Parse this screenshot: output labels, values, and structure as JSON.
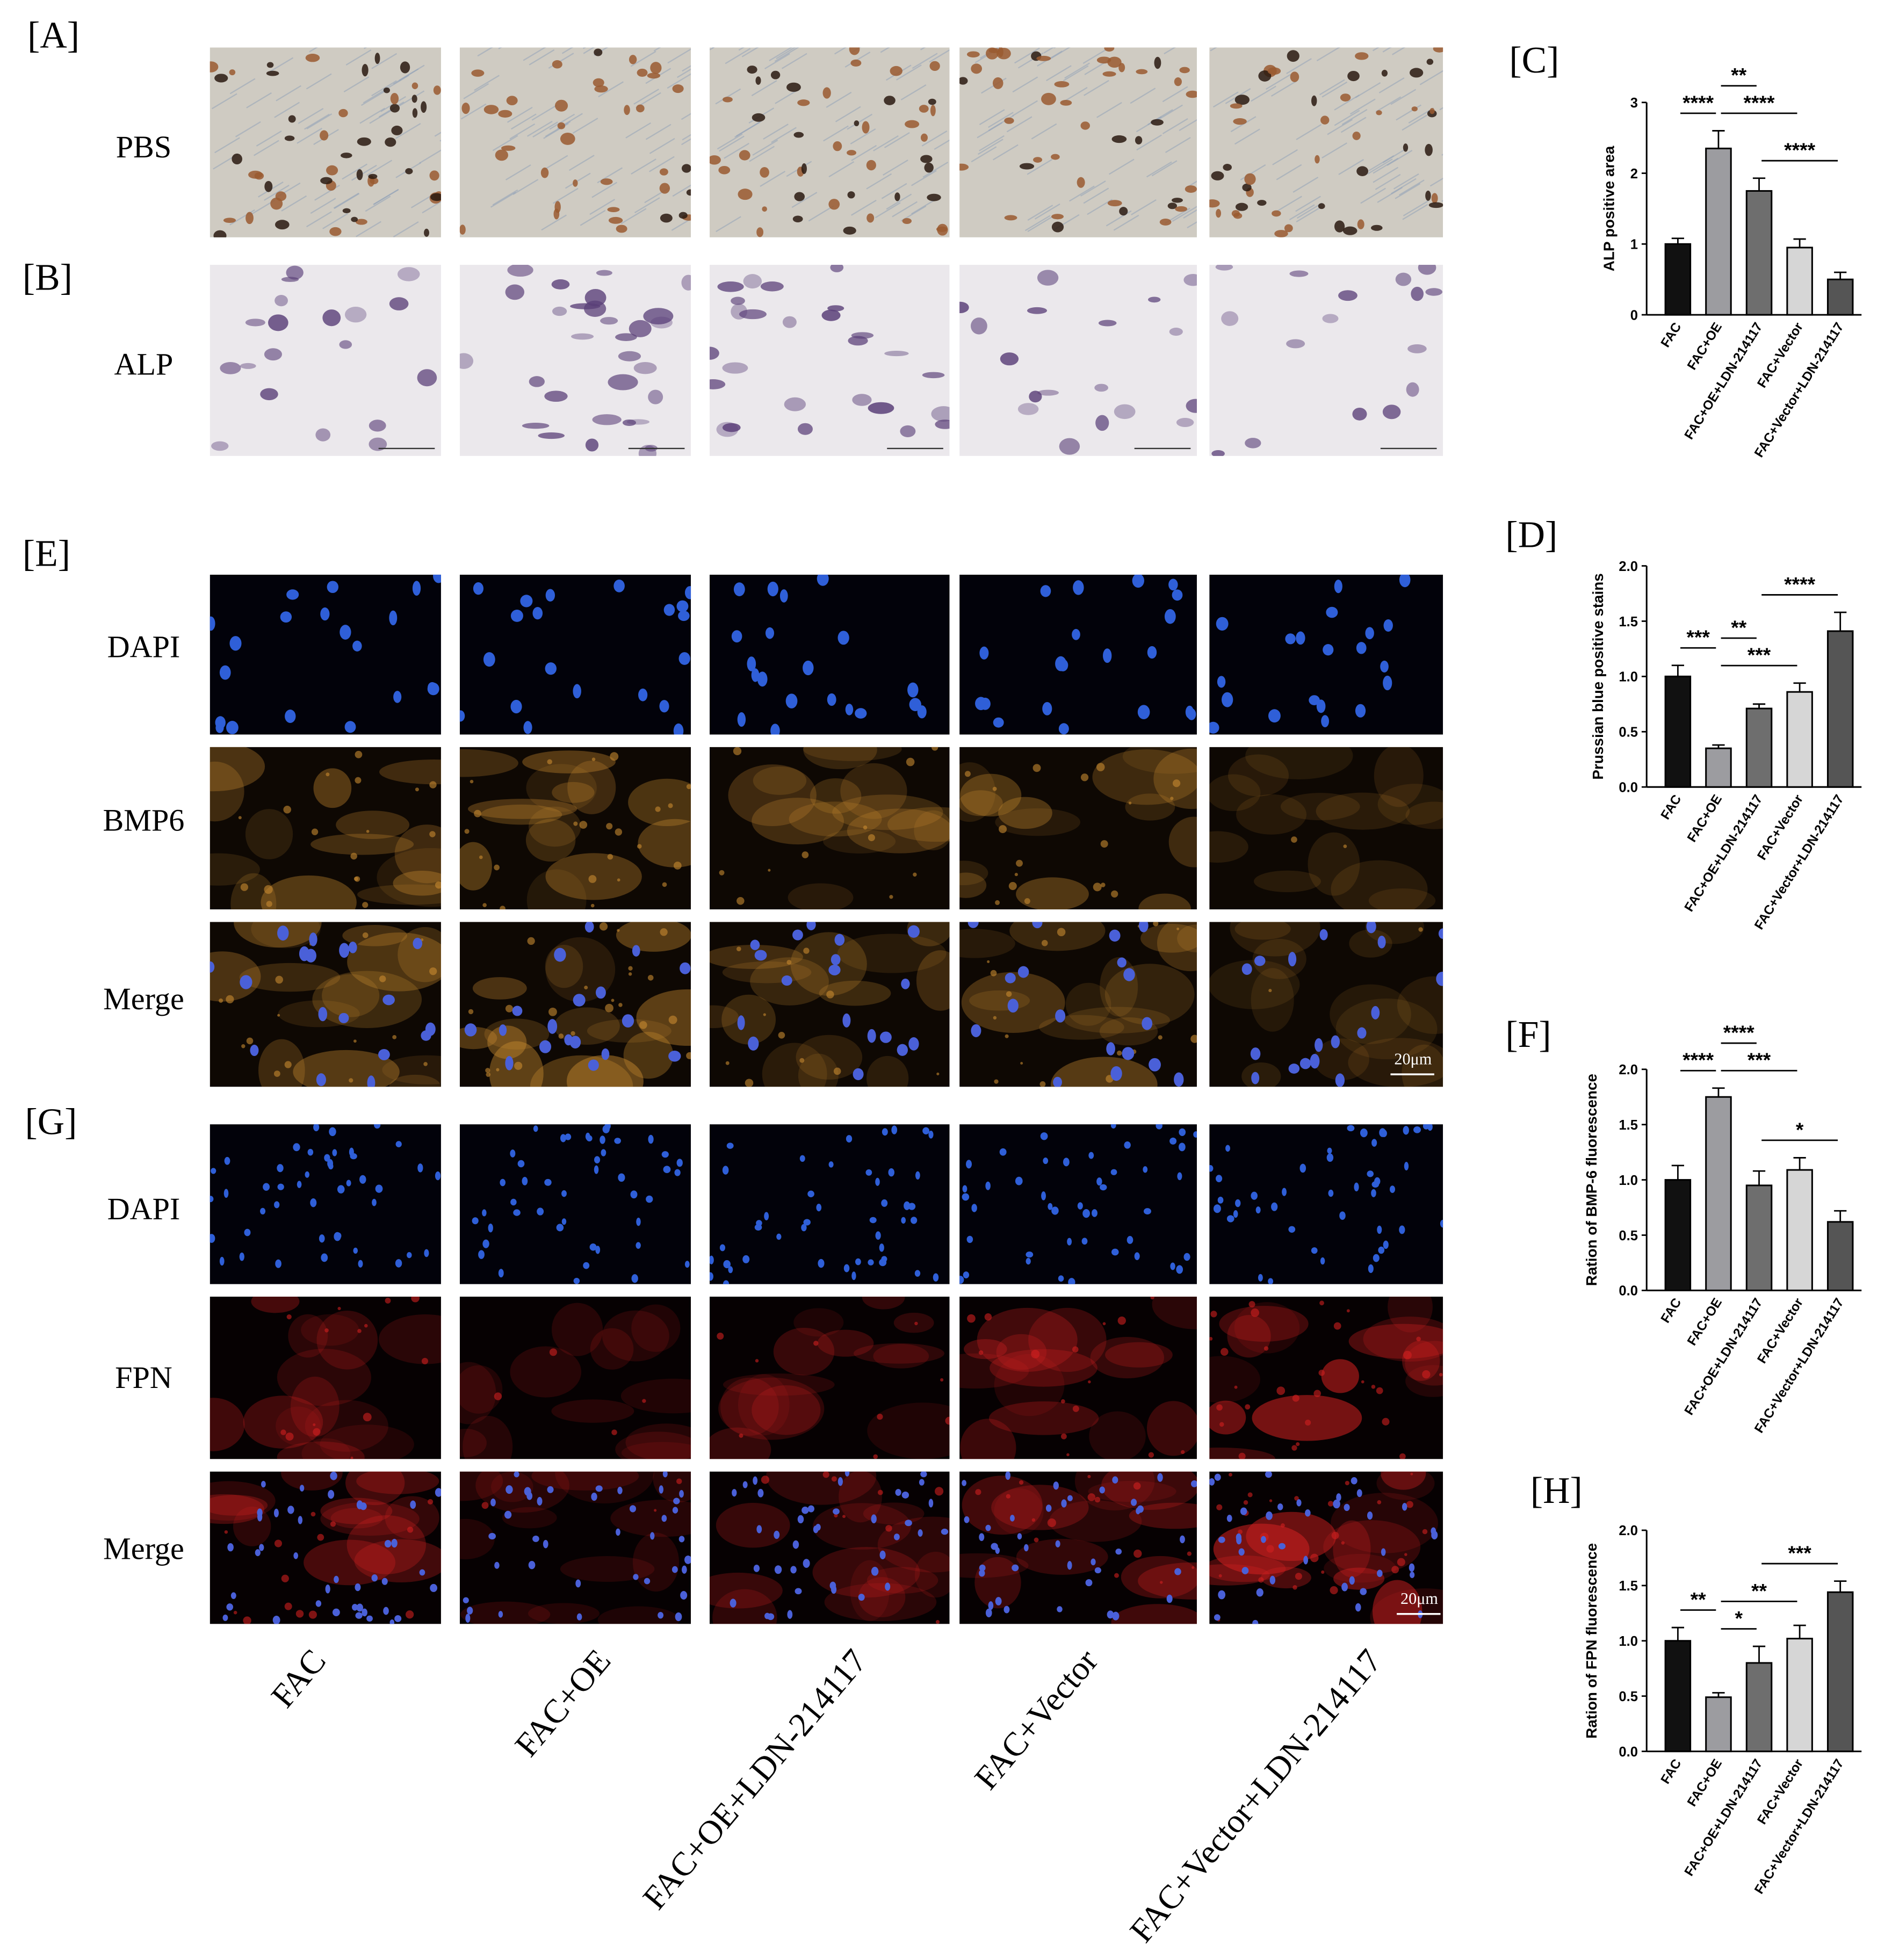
{
  "figure": {
    "panel_labels": [
      "[A]",
      "[B]",
      "[C]",
      "[D]",
      "[E]",
      "[F]",
      "[G]",
      "[H]"
    ],
    "row_labels": [
      "PBS",
      "ALP",
      "DAPI",
      "BMP6",
      "Merge",
      "DAPI",
      "FPN",
      "Merge"
    ],
    "column_labels": [
      "FAC",
      "FAC+OE",
      "FAC+OE+LDN-214117",
      "FAC+Vector",
      "FAC+Vector+LDN-214117"
    ],
    "scale_bars": [
      "20μm",
      "20μm"
    ]
  },
  "chart_data": [
    {
      "type": "bar",
      "y_label": "ALP positive area",
      "categories": [
        "FAC",
        "FAC+OE",
        "FAC+OE+LDN-214117",
        "FAC+Vector",
        "FAC+Vector+LDN-214117"
      ],
      "values": [
        1.0,
        2.35,
        1.75,
        0.95,
        0.5
      ],
      "errors": [
        0.08,
        0.25,
        0.18,
        0.12,
        0.1
      ],
      "colors": [
        "#111111",
        "#9c9ca0",
        "#6e6e6e",
        "#d6d6d6",
        "#555555"
      ],
      "ylim": [
        0,
        3
      ],
      "yticks": [
        0,
        1,
        2,
        3
      ],
      "significance": [
        {
          "between": [
            "FAC+OE+LDN-214117",
            "FAC+Vector+LDN-214117"
          ],
          "label": "****"
        },
        {
          "between": [
            "FAC+OE",
            "FAC+Vector"
          ],
          "label": "****"
        },
        {
          "between": [
            "FAC",
            "FAC+OE"
          ],
          "label": "****"
        },
        {
          "between": [
            "FAC+OE",
            "FAC+OE+LDN-214117"
          ],
          "label": "**"
        }
      ]
    },
    {
      "type": "bar",
      "y_label": "Prussian blue positive stains",
      "categories": [
        "FAC",
        "FAC+OE",
        "FAC+OE+LDN-214117",
        "FAC+Vector",
        "FAC+Vector+LDN-214117"
      ],
      "values": [
        1.0,
        0.35,
        0.71,
        0.86,
        1.41
      ],
      "errors": [
        0.1,
        0.03,
        0.04,
        0.08,
        0.17
      ],
      "colors": [
        "#111111",
        "#9c9ca0",
        "#6e6e6e",
        "#d6d6d6",
        "#555555"
      ],
      "ylim": [
        0,
        2
      ],
      "yticks": [
        {
          "value": 0,
          "label": "0.0"
        },
        0.5,
        {
          "value": 1,
          "label": "1.0"
        },
        1.5,
        {
          "value": 2,
          "label": "2.0"
        }
      ],
      "significance": [
        {
          "between": [
            "FAC",
            "FAC+OE"
          ],
          "label": "***"
        },
        {
          "between": [
            "FAC+OE",
            "FAC+Vector"
          ],
          "label": "***"
        },
        {
          "between": [
            "FAC+OE",
            "FAC+OE+LDN-214117"
          ],
          "label": "**"
        },
        {
          "between": [
            "FAC+OE+LDN-214117",
            "FAC+Vector+LDN-214117"
          ],
          "label": "****"
        }
      ]
    },
    {
      "type": "bar",
      "y_label": "Ration of BMP-6 fluorescence",
      "categories": [
        "FAC",
        "FAC+OE",
        "FAC+OE+LDN-214117",
        "FAC+Vector",
        "FAC+Vector+LDN-214117"
      ],
      "values": [
        1.0,
        1.75,
        0.95,
        1.09,
        0.62
      ],
      "errors": [
        0.13,
        0.08,
        0.13,
        0.11,
        0.1
      ],
      "colors": [
        "#111111",
        "#9c9ca0",
        "#6e6e6e",
        "#d6d6d6",
        "#555555"
      ],
      "ylim": [
        0,
        2
      ],
      "yticks": [
        {
          "value": 0,
          "label": "0.0"
        },
        0.5,
        {
          "value": 1,
          "label": "1.0"
        },
        1.5,
        {
          "value": 2,
          "label": "2.0"
        }
      ],
      "significance": [
        {
          "between": [
            "FAC",
            "FAC+OE"
          ],
          "label": "****"
        },
        {
          "between": [
            "FAC+OE",
            "FAC+Vector"
          ],
          "label": "***"
        },
        {
          "between": [
            "FAC+OE",
            "FAC+OE+LDN-214117"
          ],
          "label": "****"
        },
        {
          "between": [
            "FAC+OE+LDN-214117",
            "FAC+Vector+LDN-214117"
          ],
          "label": "*"
        }
      ]
    },
    {
      "type": "bar",
      "y_label": "Ration of FPN fluorescence",
      "categories": [
        "FAC",
        "FAC+OE",
        "FAC+OE+LDN-214117",
        "FAC+Vector",
        "FAC+Vector+LDN-214117"
      ],
      "values": [
        1.0,
        0.49,
        0.8,
        1.02,
        1.44
      ],
      "errors": [
        0.12,
        0.04,
        0.15,
        0.12,
        0.1
      ],
      "colors": [
        "#111111",
        "#9c9ca0",
        "#6e6e6e",
        "#d6d6d6",
        "#555555"
      ],
      "ylim": [
        0,
        2
      ],
      "yticks": [
        {
          "value": 0,
          "label": "0.0"
        },
        0.5,
        {
          "value": 1,
          "label": "1.0"
        },
        1.5,
        {
          "value": 2,
          "label": "2.0"
        }
      ],
      "significance": [
        {
          "between": [
            "FAC",
            "FAC+OE"
          ],
          "label": "**"
        },
        {
          "between": [
            "FAC+OE",
            "FAC+OE+LDN-214117"
          ],
          "label": "*"
        },
        {
          "between": [
            "FAC+OE+LDN-214117",
            "FAC+Vector+LDN-214117"
          ],
          "label": "***"
        },
        {
          "between": [
            "FAC+OE",
            "FAC+Vector"
          ],
          "label": "**"
        }
      ]
    }
  ]
}
